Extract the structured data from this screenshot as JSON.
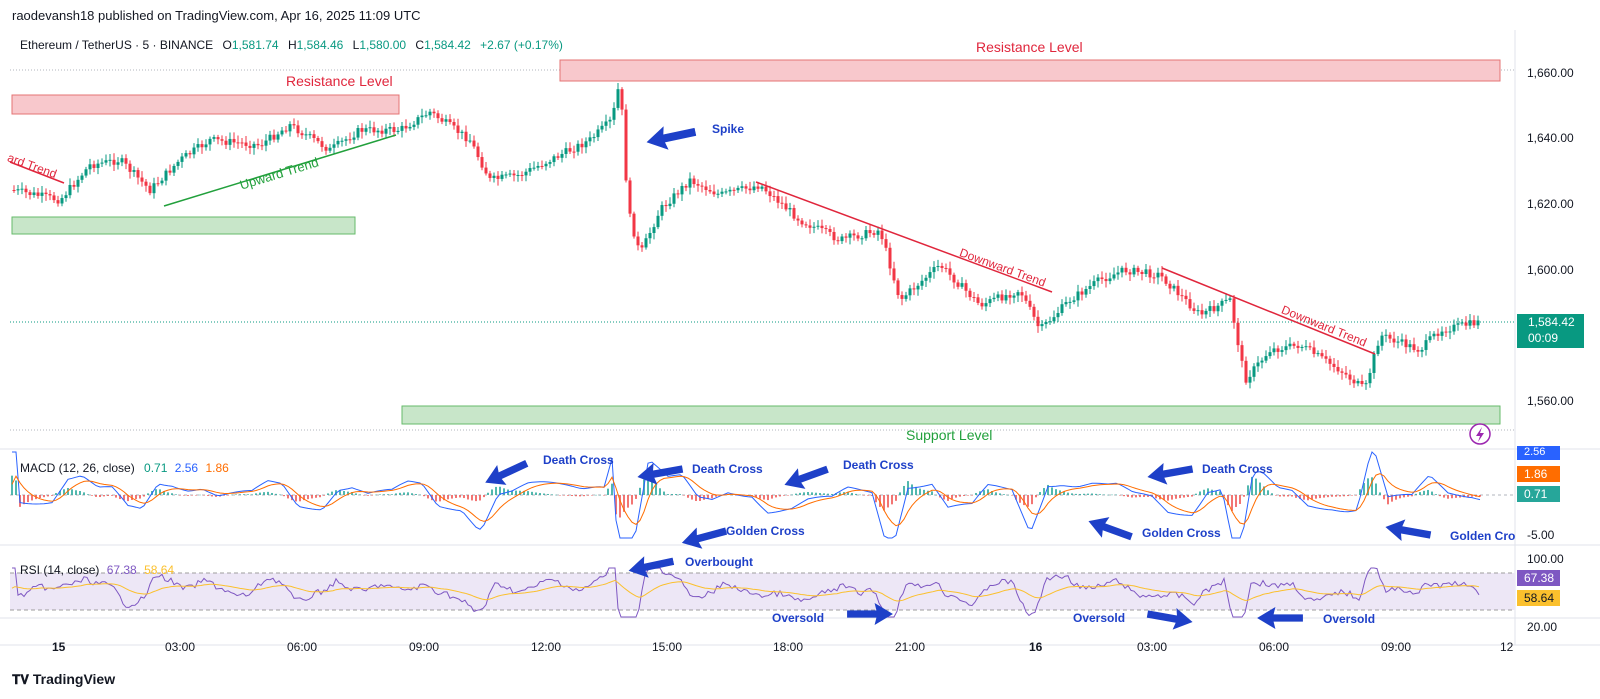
{
  "header": {
    "published": "raodevansh18 published on TradingView.com, Apr 16, 2025 11:09 UTC",
    "symbol": "Ethereum / TetherUS · 5 · BINANCE",
    "o_label": "O",
    "o_value": "1,581.74",
    "h_label": "H",
    "h_value": "1,584.46",
    "l_label": "L",
    "l_value": "1,580.00",
    "c_label": "C",
    "c_value": "1,584.42",
    "change": "+2.67 (+0.17%)"
  },
  "price_axis": {
    "ticks": [
      "1,660.00",
      "1,640.00",
      "1,620.00",
      "1,600.00",
      "1,560.00"
    ],
    "last_price": "1,584.42",
    "countdown": "00:09"
  },
  "time_axis": {
    "ticks": [
      "15",
      "03:00",
      "06:00",
      "09:00",
      "12:00",
      "15:00",
      "18:00",
      "21:00",
      "16",
      "03:00",
      "06:00",
      "09:00",
      "12"
    ]
  },
  "annotations": {
    "resistance_left": "Resistance Level",
    "resistance_top": "Resistance Level",
    "support": "Support Level",
    "spike": "Spike",
    "upward_trend": "Upward Trend",
    "downward_trend_left": "ard Trend",
    "downward_trend_1": "Downward Trend",
    "downward_trend_2": "Downward Trend"
  },
  "macd": {
    "title": "MACD (12, 26, close)",
    "v1": "0.71",
    "v2": "2.56",
    "v3": "1.86",
    "axis_badges": [
      "2.56",
      "1.86",
      "0.71"
    ],
    "axis_low": "-5.00",
    "labels": {
      "death1": "Death Cross",
      "death2": "Death Cross",
      "death3": "Death Cross",
      "death4": "Death Cross",
      "golden1": "Golden Cross",
      "golden2": "Golden Cross",
      "golden3": "Golden Cro"
    }
  },
  "rsi": {
    "title": "RSI (14, close)",
    "v1": "67.38",
    "v2": "58.64",
    "axis_top": "100.00",
    "axis_bottom": "20.00",
    "labels": {
      "overbought": "Overbought",
      "oversold1": "Oversold",
      "oversold2": "Oversold",
      "oversold3": "Oversold"
    }
  },
  "footer": {
    "logo": "TradingView"
  },
  "colors": {
    "up": "#089981",
    "down": "#f23645",
    "macd": "#2962ff",
    "signal": "#ff6d00",
    "rsi": "#7e57c2",
    "rsi_ma": "#fbc02d",
    "annot_blue": "#1e40c8"
  },
  "icons": [
    "arrow-left-icon",
    "lightning-icon",
    "tradingview-logo-icon"
  ]
}
